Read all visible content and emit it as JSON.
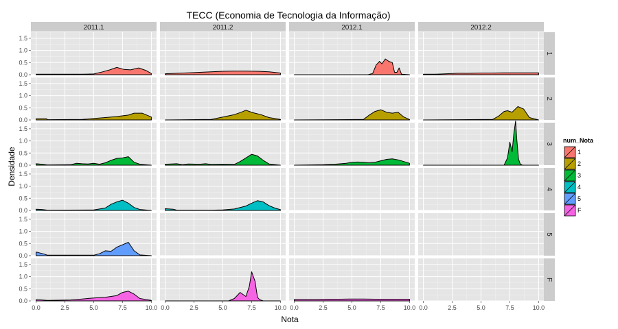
{
  "chart_data": {
    "type": "area",
    "subtype": "faceted density plot",
    "title": "TECC (Economia de Tecnologia da Informação)",
    "xlabel": "Nota",
    "ylabel": "Densidade",
    "xlim": [
      0,
      10
    ],
    "ylim": [
      0,
      1.75
    ],
    "x_ticks": [
      "0.0",
      "2.5",
      "5.0",
      "7.5",
      "10.0"
    ],
    "y_ticks": [
      "0.0",
      "0.5",
      "1.0",
      "1.5"
    ],
    "grid": true,
    "facet_columns": [
      "2011.1",
      "2011.2",
      "2012.1",
      "2012.2"
    ],
    "facet_rows": [
      "1",
      "2",
      "3",
      "4",
      "5",
      "F"
    ],
    "legend": {
      "title": "num_Nota",
      "position": "right",
      "entries": [
        {
          "label": "1",
          "color": "#F8766D"
        },
        {
          "label": "2",
          "color": "#B79F00"
        },
        {
          "label": "3",
          "color": "#00BA38"
        },
        {
          "label": "4",
          "color": "#00BFC4"
        },
        {
          "label": "5",
          "color": "#619CFF"
        },
        {
          "label": "F",
          "color": "#F564E3"
        }
      ]
    },
    "panels": [
      {
        "row": "1",
        "col": "2011.1",
        "x": [
          0,
          4,
          5,
          5.8,
          6.4,
          7,
          7.6,
          8.2,
          8.9,
          9.5,
          10
        ],
        "y": [
          0.02,
          0.02,
          0.03,
          0.12,
          0.2,
          0.3,
          0.22,
          0.2,
          0.28,
          0.18,
          0.05
        ]
      },
      {
        "row": "1",
        "col": "2011.2",
        "x": [
          0,
          1,
          2,
          3,
          4,
          5,
          6,
          7,
          8,
          9,
          10
        ],
        "y": [
          0.04,
          0.06,
          0.08,
          0.1,
          0.12,
          0.14,
          0.15,
          0.15,
          0.14,
          0.12,
          0.07
        ]
      },
      {
        "row": "1",
        "col": "2012.1",
        "x": [
          0,
          6.4,
          6.8,
          7.1,
          7.4,
          7.6,
          7.9,
          8.2,
          8.5,
          8.7,
          8.9,
          9.1,
          9.3,
          10
        ],
        "y": [
          0,
          0,
          0.05,
          0.4,
          0.55,
          0.45,
          0.65,
          0.55,
          0.5,
          0.1,
          0.1,
          0.28,
          0.02,
          0
        ]
      },
      {
        "row": "1",
        "col": "2012.2",
        "x": [
          0,
          1,
          2,
          3,
          4,
          5,
          6,
          7,
          8,
          9,
          10
        ],
        "y": [
          0.02,
          0.02,
          0.04,
          0.06,
          0.06,
          0.07,
          0.07,
          0.08,
          0.08,
          0.08,
          0.08
        ]
      },
      {
        "row": "2",
        "col": "2011.1",
        "x": [
          0,
          0.9,
          1,
          4,
          5,
          6,
          7,
          8,
          8.5,
          9.2,
          10
        ],
        "y": [
          0.05,
          0.05,
          0.01,
          0.02,
          0.06,
          0.1,
          0.14,
          0.2,
          0.28,
          0.28,
          0.12
        ]
      },
      {
        "row": "2",
        "col": "2011.2",
        "x": [
          0,
          4,
          5,
          6,
          6.6,
          7,
          7.6,
          8.3,
          9,
          10
        ],
        "y": [
          0,
          0.02,
          0.12,
          0.22,
          0.32,
          0.4,
          0.3,
          0.22,
          0.1,
          0.02
        ]
      },
      {
        "row": "2",
        "col": "2012.1",
        "x": [
          0,
          6,
          6.5,
          7,
          7.5,
          8,
          8.5,
          9,
          9.5,
          10
        ],
        "y": [
          0,
          0.02,
          0.2,
          0.35,
          0.42,
          0.32,
          0.28,
          0.32,
          0.12,
          0.02
        ]
      },
      {
        "row": "2",
        "col": "2012.2",
        "x": [
          0,
          6,
          6.5,
          7,
          7.3,
          7.7,
          8.2,
          8.7,
          9.2,
          10
        ],
        "y": [
          0,
          0.02,
          0.15,
          0.35,
          0.38,
          0.32,
          0.55,
          0.45,
          0.1,
          0
        ]
      },
      {
        "row": "3",
        "col": "2011.1",
        "x": [
          0,
          0.5,
          1,
          3,
          3.5,
          4,
          4.5,
          5,
          5.5,
          6,
          6.5,
          7,
          7.5,
          8,
          8.5,
          9,
          10
        ],
        "y": [
          0.06,
          0.04,
          0.01,
          0.02,
          0.08,
          0.06,
          0.05,
          0.08,
          0.04,
          0.1,
          0.2,
          0.28,
          0.3,
          0.35,
          0.12,
          0.04,
          0
        ]
      },
      {
        "row": "3",
        "col": "2011.2",
        "x": [
          0,
          1,
          1.5,
          2,
          3,
          3.5,
          4,
          5,
          6,
          6.5,
          7,
          7.5,
          8,
          8.5,
          9,
          10
        ],
        "y": [
          0.04,
          0.06,
          0.02,
          0.05,
          0.04,
          0.06,
          0.03,
          0.04,
          0.03,
          0.15,
          0.3,
          0.45,
          0.38,
          0.2,
          0.05,
          0
        ]
      },
      {
        "row": "3",
        "col": "2012.1",
        "x": [
          0,
          2.5,
          3.5,
          4.5,
          5,
          5.5,
          6,
          6.5,
          7,
          7.5,
          8,
          8.5,
          9,
          9.5,
          10
        ],
        "y": [
          0,
          0.02,
          0.04,
          0.08,
          0.12,
          0.13,
          0.12,
          0.1,
          0.12,
          0.18,
          0.24,
          0.26,
          0.22,
          0.15,
          0.08
        ]
      },
      {
        "row": "3",
        "col": "2012.2",
        "x": [
          0,
          7,
          7.3,
          7.5,
          7.7,
          7.85,
          8,
          8.1,
          8.25,
          8.4,
          8.6,
          10
        ],
        "y": [
          0,
          0,
          0.3,
          0.95,
          0.55,
          1.3,
          1.82,
          1.1,
          0.25,
          0.05,
          0,
          0
        ]
      },
      {
        "row": "4",
        "col": "2011.1",
        "x": [
          0,
          0.5,
          1,
          5,
          6,
          6.5,
          7,
          7.5,
          8,
          8.5,
          9,
          10
        ],
        "y": [
          0.05,
          0.04,
          0.01,
          0.02,
          0.1,
          0.25,
          0.35,
          0.42,
          0.3,
          0.12,
          0.04,
          0
        ]
      },
      {
        "row": "4",
        "col": "2011.2",
        "x": [
          0,
          0.7,
          1,
          4,
          5,
          6,
          7,
          7.5,
          8,
          8.5,
          9,
          9.5,
          10
        ],
        "y": [
          0.07,
          0.05,
          0.01,
          0.01,
          0.02,
          0.06,
          0.18,
          0.3,
          0.4,
          0.35,
          0.2,
          0.1,
          0.03
        ]
      },
      {
        "row": "5",
        "col": "2011.1",
        "x": [
          0,
          0.6,
          1,
          5,
          5.5,
          6,
          6.5,
          7,
          7.5,
          8,
          8.5,
          9,
          10
        ],
        "y": [
          0.15,
          0.08,
          0.02,
          0.02,
          0.08,
          0.2,
          0.18,
          0.35,
          0.45,
          0.55,
          0.2,
          0.03,
          0
        ]
      },
      {
        "row": "F",
        "col": "2011.1",
        "x": [
          0,
          0.5,
          1,
          3,
          4,
          5,
          6,
          7,
          7.5,
          8,
          8.5,
          9,
          10
        ],
        "y": [
          0.05,
          0.04,
          0.02,
          0.04,
          0.08,
          0.12,
          0.15,
          0.22,
          0.35,
          0.4,
          0.28,
          0.1,
          0.02
        ]
      },
      {
        "row": "F",
        "col": "2011.2",
        "x": [
          0,
          5.5,
          6,
          6.5,
          6.8,
          7,
          7.3,
          7.5,
          7.8,
          8,
          8.2,
          8.5,
          10
        ],
        "y": [
          0,
          0,
          0.1,
          0.35,
          0.25,
          0.18,
          0.6,
          1.2,
          0.8,
          0.15,
          0.05,
          0,
          0
        ]
      },
      {
        "row": "F",
        "col": "2012.1",
        "x": [
          0,
          1,
          2,
          3,
          4,
          5,
          6,
          7,
          8,
          9,
          10
        ],
        "y": [
          0.06,
          0.06,
          0.06,
          0.07,
          0.07,
          0.08,
          0.08,
          0.07,
          0.07,
          0.07,
          0.07
        ]
      }
    ]
  }
}
